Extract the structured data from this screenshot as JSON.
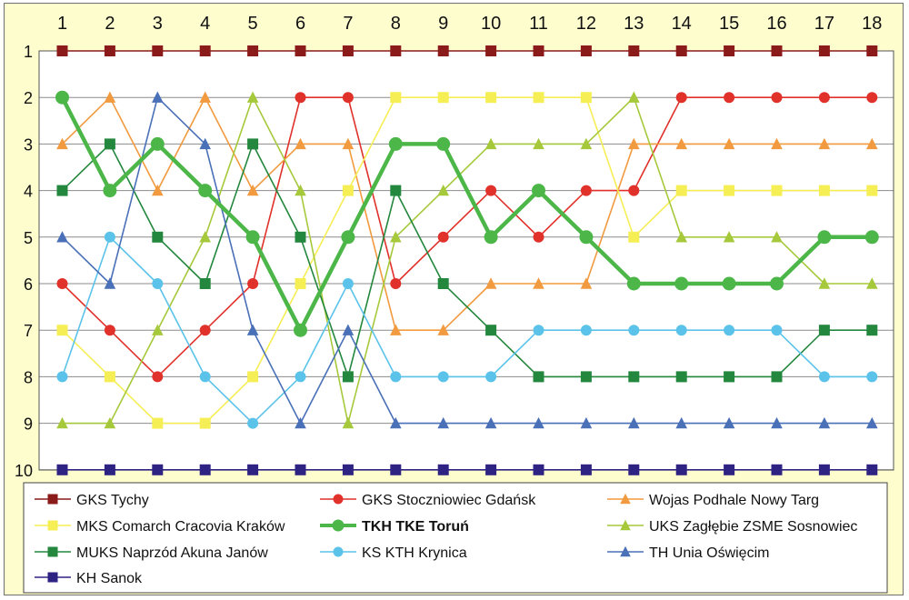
{
  "chart_data": {
    "type": "line",
    "title": "",
    "xlabel": "",
    "ylabel": "",
    "x": [
      1,
      2,
      3,
      4,
      5,
      6,
      7,
      8,
      9,
      10,
      11,
      12,
      13,
      14,
      15,
      16,
      17,
      18
    ],
    "x_tick_labels": [
      "1",
      "2",
      "3",
      "4",
      "5",
      "6",
      "7",
      "8",
      "9",
      "10",
      "11",
      "12",
      "13",
      "14",
      "15",
      "16",
      "17",
      "18"
    ],
    "y_tick_labels": [
      "1",
      "2",
      "3",
      "4",
      "5",
      "6",
      "7",
      "8",
      "9",
      "10"
    ],
    "ylim": [
      1,
      10
    ],
    "y_inverted": true,
    "x_axis_position": "top",
    "grid": true,
    "legend_position": "bottom",
    "background_color": "#fdfdce",
    "plot_background_color": "#ffffff",
    "series": [
      {
        "name": "GKS Tychy",
        "color": "#8b1a1a",
        "marker": "square",
        "bold": false,
        "values": [
          1,
          1,
          1,
          1,
          1,
          1,
          1,
          1,
          1,
          1,
          1,
          1,
          1,
          1,
          1,
          1,
          1,
          1
        ]
      },
      {
        "name": "GKS Stoczniowiec Gdańsk",
        "color": "#e0312b",
        "marker": "circle",
        "bold": false,
        "values": [
          6,
          7,
          8,
          7,
          6,
          2,
          2,
          6,
          5,
          4,
          5,
          4,
          4,
          2,
          2,
          2,
          2,
          2
        ]
      },
      {
        "name": "Wojas Podhale Nowy Targ",
        "color": "#f29a3f",
        "marker": "triangle",
        "bold": false,
        "values": [
          3,
          2,
          4,
          2,
          4,
          3,
          3,
          7,
          7,
          6,
          6,
          6,
          3,
          3,
          3,
          3,
          3,
          3
        ]
      },
      {
        "name": "MKS Comarch Cracovia Kraków",
        "color": "#f6ee55",
        "marker": "square",
        "bold": false,
        "values": [
          7,
          8,
          9,
          9,
          8,
          6,
          4,
          2,
          2,
          2,
          2,
          2,
          5,
          4,
          4,
          4,
          4,
          4
        ]
      },
      {
        "name": "TKH TKE Toruń",
        "color": "#4cb748",
        "marker": "circle",
        "bold": true,
        "values": [
          2,
          4,
          3,
          4,
          5,
          7,
          5,
          3,
          3,
          5,
          4,
          5,
          6,
          6,
          6,
          6,
          5,
          5
        ]
      },
      {
        "name": "UKS Zagłębie ZSME Sosnowiec",
        "color": "#a6c93b",
        "marker": "triangle",
        "bold": false,
        "values": [
          9,
          9,
          7,
          5,
          2,
          4,
          9,
          5,
          4,
          3,
          3,
          3,
          2,
          5,
          5,
          5,
          6,
          6
        ]
      },
      {
        "name": "MUKS Naprzód Akuna Janów",
        "color": "#23873d",
        "marker": "square",
        "bold": false,
        "values": [
          4,
          3,
          5,
          6,
          3,
          5,
          8,
          4,
          6,
          7,
          8,
          8,
          8,
          8,
          8,
          8,
          7,
          7
        ]
      },
      {
        "name": "KS KTH Krynica",
        "color": "#5bc3ea",
        "marker": "circle",
        "bold": false,
        "values": [
          8,
          5,
          6,
          8,
          9,
          8,
          6,
          8,
          8,
          8,
          7,
          7,
          7,
          7,
          7,
          7,
          8,
          8
        ]
      },
      {
        "name": "TH Unia Oświęcim",
        "color": "#4a70b8",
        "marker": "triangle",
        "bold": false,
        "values": [
          5,
          6,
          2,
          3,
          7,
          9,
          7,
          9,
          9,
          9,
          9,
          9,
          9,
          9,
          9,
          9,
          9,
          9
        ]
      },
      {
        "name": "KH Sanok",
        "color": "#2e2282",
        "marker": "square",
        "bold": false,
        "values": [
          10,
          10,
          10,
          10,
          10,
          10,
          10,
          10,
          10,
          10,
          10,
          10,
          10,
          10,
          10,
          10,
          10,
          10
        ]
      }
    ]
  }
}
